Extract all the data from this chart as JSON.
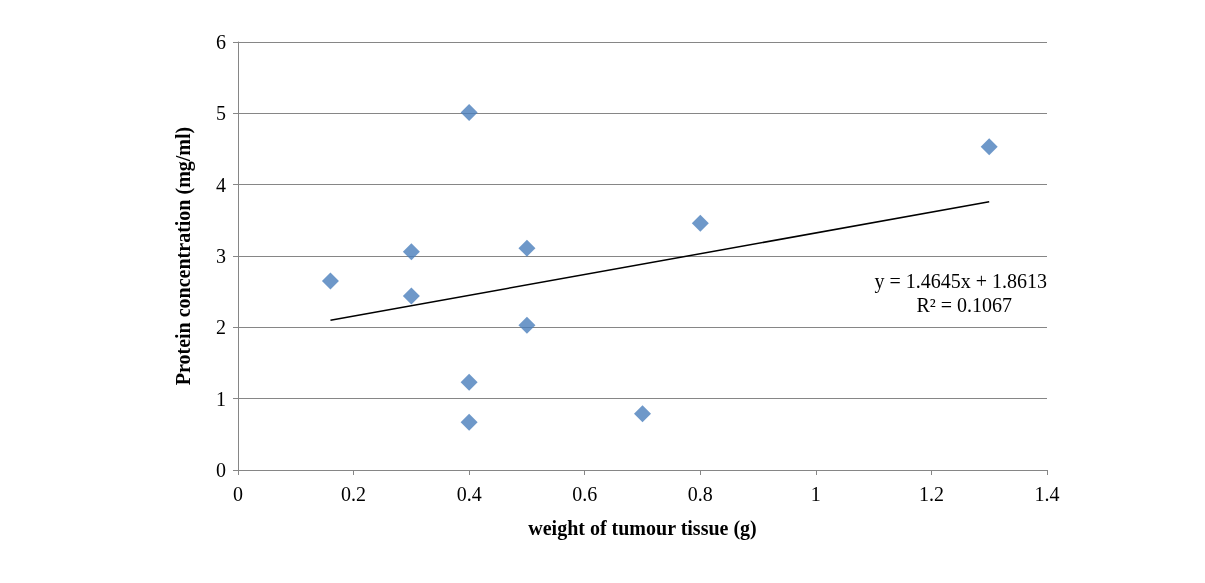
{
  "chart_data": {
    "type": "scatter",
    "xlabel": "weight of tumour tissue (g)",
    "ylabel": "Protein concentration (mg/ml)",
    "xlim": [
      0,
      1.4
    ],
    "xticks": [
      0,
      0.2,
      0.4,
      0.6,
      0.8,
      1,
      1.2,
      1.4
    ],
    "ylim": [
      0,
      6
    ],
    "yticks": [
      0,
      1,
      2,
      3,
      4,
      5,
      6
    ],
    "grid": "y",
    "marker": "diamond",
    "series": [
      {
        "color": "#4a7ebb",
        "x": [
          0.16,
          0.3,
          0.3,
          0.4,
          0.4,
          0.4,
          0.5,
          0.5,
          0.7,
          0.8,
          1.3
        ],
        "values": [
          2.65,
          3.06,
          2.44,
          5.01,
          1.23,
          0.67,
          3.11,
          2.03,
          0.79,
          3.46,
          4.53
        ]
      },
      {
        "type": "line",
        "color": "#000000",
        "marker": "none",
        "line_style": "solid",
        "x": [
          0.16,
          1.3
        ],
        "values": [
          2.1,
          3.76
        ]
      }
    ],
    "annotations": [
      "y = 1.4645x + 1.8613",
      "R² = 0.1067"
    ]
  }
}
